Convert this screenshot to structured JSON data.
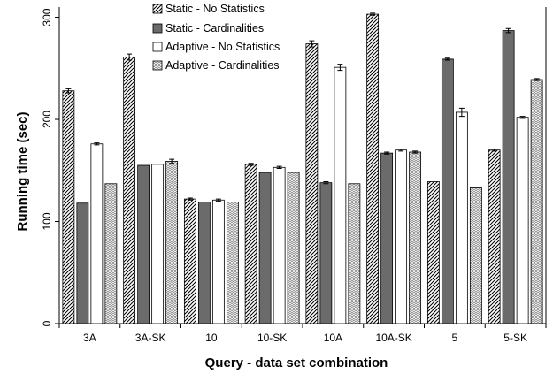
{
  "chart_data": {
    "type": "bar",
    "title": "",
    "xlabel": "Query - data set combination",
    "ylabel": "Running time (sec)",
    "ylim": [
      0,
      310
    ],
    "yticks": [
      0,
      100,
      200,
      300
    ],
    "grid": false,
    "legend_position": "top-center",
    "categories": [
      "3A",
      "3A-SK",
      "10",
      "10-SK",
      "10A",
      "10A-SK",
      "5",
      "5-SK"
    ],
    "series": [
      {
        "name": "Static - No Statistics",
        "pattern": "diagonal-hatch",
        "values": [
          228,
          261,
          122,
          156,
          274,
          303,
          139,
          170
        ],
        "errors": [
          2,
          3,
          1,
          1,
          3,
          1,
          0,
          1
        ]
      },
      {
        "name": "Static - Cardinalities",
        "pattern": "dark-solid",
        "values": [
          118,
          155,
          119,
          148,
          138,
          167,
          259,
          287
        ],
        "errors": [
          0,
          0,
          0,
          0,
          1,
          1,
          1,
          2
        ]
      },
      {
        "name": "Adaptive - No Statistics",
        "pattern": "white-solid",
        "values": [
          176,
          156,
          121,
          153,
          251,
          170,
          207,
          202
        ],
        "errors": [
          1,
          0,
          1,
          1,
          3,
          1,
          4,
          1
        ]
      },
      {
        "name": "Adaptive - Cardinalities",
        "pattern": "zigzag-hatch",
        "values": [
          137,
          159,
          119,
          148,
          137,
          168,
          133,
          239
        ],
        "errors": [
          0,
          2,
          0,
          0,
          0,
          1,
          0,
          1
        ]
      }
    ],
    "colors": {
      "dark": "#6b6b6b",
      "stroke": "#000000",
      "background": "#ffffff"
    }
  }
}
